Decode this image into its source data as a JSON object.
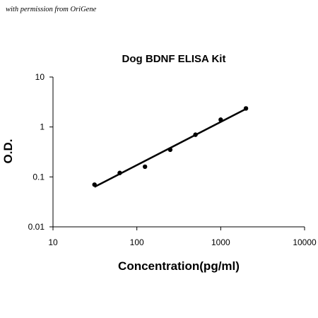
{
  "watermark": "with permission from OriGene",
  "chart_data": {
    "type": "scatter",
    "title": "Dog BDNF ELISA Kit",
    "xlabel": "Concentration(pg/ml)",
    "ylabel": "O.D.",
    "x_scale": "log",
    "y_scale": "log",
    "xlim": [
      10,
      10000
    ],
    "ylim": [
      0.01,
      10
    ],
    "x_ticks": [
      "10",
      "100",
      "1000",
      "10000"
    ],
    "y_ticks": [
      "0.01",
      "0.1",
      "1",
      "10"
    ],
    "grid": false,
    "legend": "none",
    "series": [
      {
        "x": [
          31.25,
          62.5,
          125,
          250,
          500,
          1000,
          2000
        ],
        "y": [
          0.07,
          0.12,
          0.16,
          0.35,
          0.7,
          1.4,
          2.35
        ],
        "marker": "circle",
        "color": "#000000"
      }
    ],
    "fit_line": {
      "type": "power",
      "x_range": [
        31.25,
        2000
      ],
      "y_range": [
        0.063,
        2.3
      ],
      "color": "#000000"
    }
  }
}
